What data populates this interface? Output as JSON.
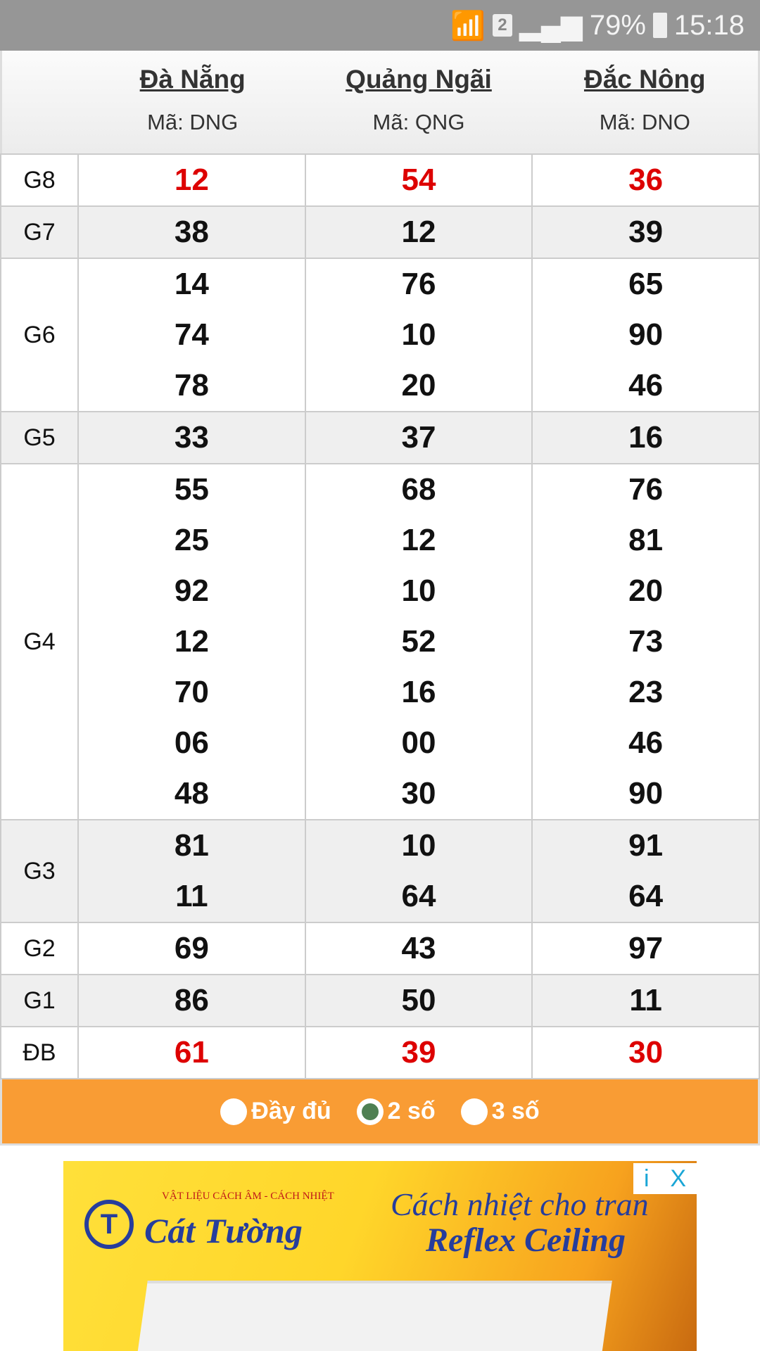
{
  "status_bar": {
    "sim": "2",
    "battery": "79%",
    "time": "15:18"
  },
  "header": {
    "provinces": [
      {
        "name": "Đà Nẵng",
        "code": "Mã: DNG"
      },
      {
        "name": "Quảng Ngãi",
        "code": "Mã: QNG"
      },
      {
        "name": "Đắc Nông",
        "code": "Mã: DNO"
      }
    ]
  },
  "colors": {
    "highlight": "#dd0000",
    "bar": "#f99c34",
    "radio_selected": "#4f7f52"
  },
  "rows": [
    {
      "label": "G8",
      "red": true,
      "values": [
        [
          "12"
        ],
        [
          "54"
        ],
        [
          "36"
        ]
      ]
    },
    {
      "label": "G7",
      "values": [
        [
          "38"
        ],
        [
          "12"
        ],
        [
          "39"
        ]
      ]
    },
    {
      "label": "G6",
      "values": [
        [
          "14",
          "74",
          "78"
        ],
        [
          "76",
          "10",
          "20"
        ],
        [
          "65",
          "90",
          "46"
        ]
      ]
    },
    {
      "label": "G5",
      "values": [
        [
          "33"
        ],
        [
          "37"
        ],
        [
          "16"
        ]
      ]
    },
    {
      "label": "G4",
      "values": [
        [
          "55",
          "25",
          "92",
          "12",
          "70",
          "06",
          "48"
        ],
        [
          "68",
          "12",
          "10",
          "52",
          "16",
          "00",
          "30"
        ],
        [
          "76",
          "81",
          "20",
          "73",
          "23",
          "46",
          "90"
        ]
      ]
    },
    {
      "label": "G3",
      "values": [
        [
          "81",
          "11"
        ],
        [
          "10",
          "64"
        ],
        [
          "91",
          "64"
        ]
      ]
    },
    {
      "label": "G2",
      "values": [
        [
          "69"
        ],
        [
          "43"
        ],
        [
          "97"
        ]
      ]
    },
    {
      "label": "G1",
      "values": [
        [
          "86"
        ],
        [
          "50"
        ],
        [
          "11"
        ]
      ]
    },
    {
      "label": "ĐB",
      "red": true,
      "values": [
        [
          "61"
        ],
        [
          "39"
        ],
        [
          "30"
        ]
      ]
    }
  ],
  "options": [
    {
      "label": "Đầy đủ",
      "selected": false
    },
    {
      "label": "2 số",
      "selected": true
    },
    {
      "label": "3 số",
      "selected": false
    }
  ],
  "ad": {
    "logo_small": "VẬT LIỆU CÁCH ÂM - CÁCH NHIỆT",
    "brand": "Cát Tường",
    "headline": "Cách nhiệt cho tran",
    "product": "Reflex Ceiling",
    "info_icon": "i",
    "close_icon": "X"
  }
}
